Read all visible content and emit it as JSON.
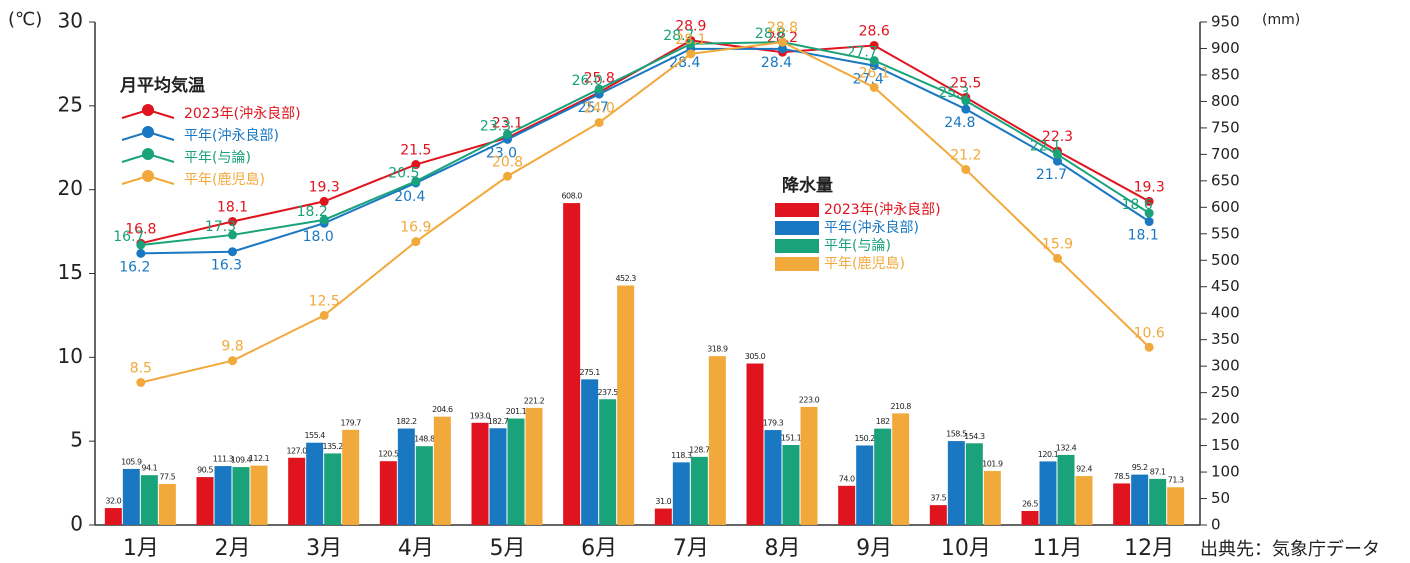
{
  "chart_data": [
    {
      "type": "line",
      "title": "月平均気温",
      "ylabel": "(℃)",
      "categories": [
        "1月",
        "2月",
        "3月",
        "4月",
        "5月",
        "6月",
        "7月",
        "8月",
        "9月",
        "10月",
        "11月",
        "12月"
      ],
      "ylim": [
        0,
        30
      ],
      "yticks": [
        0,
        5,
        10,
        15,
        20,
        25,
        30
      ],
      "series": [
        {
          "name": "2023年(沖永良部)",
          "color": "#e0141e",
          "values": [
            16.8,
            18.1,
            19.3,
            21.5,
            23.1,
            25.8,
            28.9,
            28.2,
            28.6,
            25.5,
            22.3,
            19.3
          ]
        },
        {
          "name": "平年(沖永良部)",
          "color": "#1a78c2",
          "values": [
            16.2,
            16.3,
            18.0,
            20.4,
            23.0,
            25.7,
            28.4,
            28.4,
            27.4,
            24.8,
            21.7,
            18.1
          ],
          "value_labels": [
            "16.2",
            "16.3",
            "18.0",
            "20.4",
            "23.0",
            "25.7",
            "28.4",
            "28.4",
            "27.4",
            "24.8",
            "21.7",
            "18.1"
          ]
        },
        {
          "name": "平年(与論)",
          "color": "#1aa37a",
          "values": [
            16.7,
            17.3,
            18.2,
            20.5,
            23.3,
            26.0,
            28.7,
            28.8,
            27.7,
            25.3,
            22.1,
            18.6
          ],
          "value_labels": [
            "16.7",
            "17.3",
            "18.2",
            "20.5",
            "23.3",
            "26.0",
            "28.7",
            "28.8",
            "27.7",
            "25.3",
            "22.1",
            "18.6"
          ]
        },
        {
          "name": "平年(鹿児島)",
          "color": "#f2a93b",
          "values": [
            8.5,
            9.8,
            12.5,
            16.9,
            20.8,
            24.0,
            28.1,
            28.8,
            26.1,
            21.2,
            15.9,
            10.6
          ],
          "value_labels": [
            "8.5",
            "9.8",
            "12.5",
            "16.9",
            "20.8",
            "24.0",
            "28.1",
            "28.8",
            "26.1",
            "21.2",
            "15.9",
            "10.6"
          ]
        }
      ]
    },
    {
      "type": "bar",
      "title": "降水量",
      "ylabel": "(mm)",
      "ylim": [
        0,
        950
      ],
      "yticks": [
        0,
        50,
        100,
        150,
        200,
        250,
        300,
        350,
        400,
        450,
        500,
        550,
        600,
        650,
        700,
        750,
        800,
        850,
        900,
        950
      ],
      "series": [
        {
          "name": "2023年(沖永良部)",
          "color": "#e0141e",
          "values": [
            32,
            90.5,
            127,
            120.5,
            193,
            608,
            31,
            305,
            74,
            37.5,
            26.5,
            78.5
          ],
          "value_labels": [
            "32.0",
            "90.5",
            "127.0",
            "120.5",
            "193.0",
            "608.0",
            "31.0",
            "305.0",
            "74.0",
            "37.5",
            "26.5",
            "78.5"
          ]
        },
        {
          "name": "平年(沖永良部)",
          "color": "#1a78c2",
          "values": [
            105.9,
            111.3,
            155.4,
            182.2,
            182.7,
            275.1,
            118.3,
            179.3,
            150.2,
            158.5,
            120.1,
            95.2
          ]
        },
        {
          "name": "平年(与論)",
          "color": "#1aa37a",
          "values": [
            94.1,
            109.4,
            135.2,
            148.8,
            201.1,
            237.5,
            128.7,
            151.1,
            182.0,
            154.3,
            132.4,
            87.1
          ]
        },
        {
          "name": "平年(鹿児島)",
          "color": "#f2a93b",
          "values": [
            77.5,
            112.1,
            179.7,
            204.6,
            221.2,
            452.3,
            318.9,
            223,
            210.8,
            101.9,
            92.4,
            71.3
          ],
          "value_labels": [
            "77.5",
            "112.1",
            "179.7",
            "204.6",
            "221.2",
            "452.3",
            "318.9",
            "223.0",
            "210.8",
            "101.9",
            "92.4",
            "71.3"
          ]
        }
      ]
    }
  ],
  "source": "出典先：気象庁データ"
}
